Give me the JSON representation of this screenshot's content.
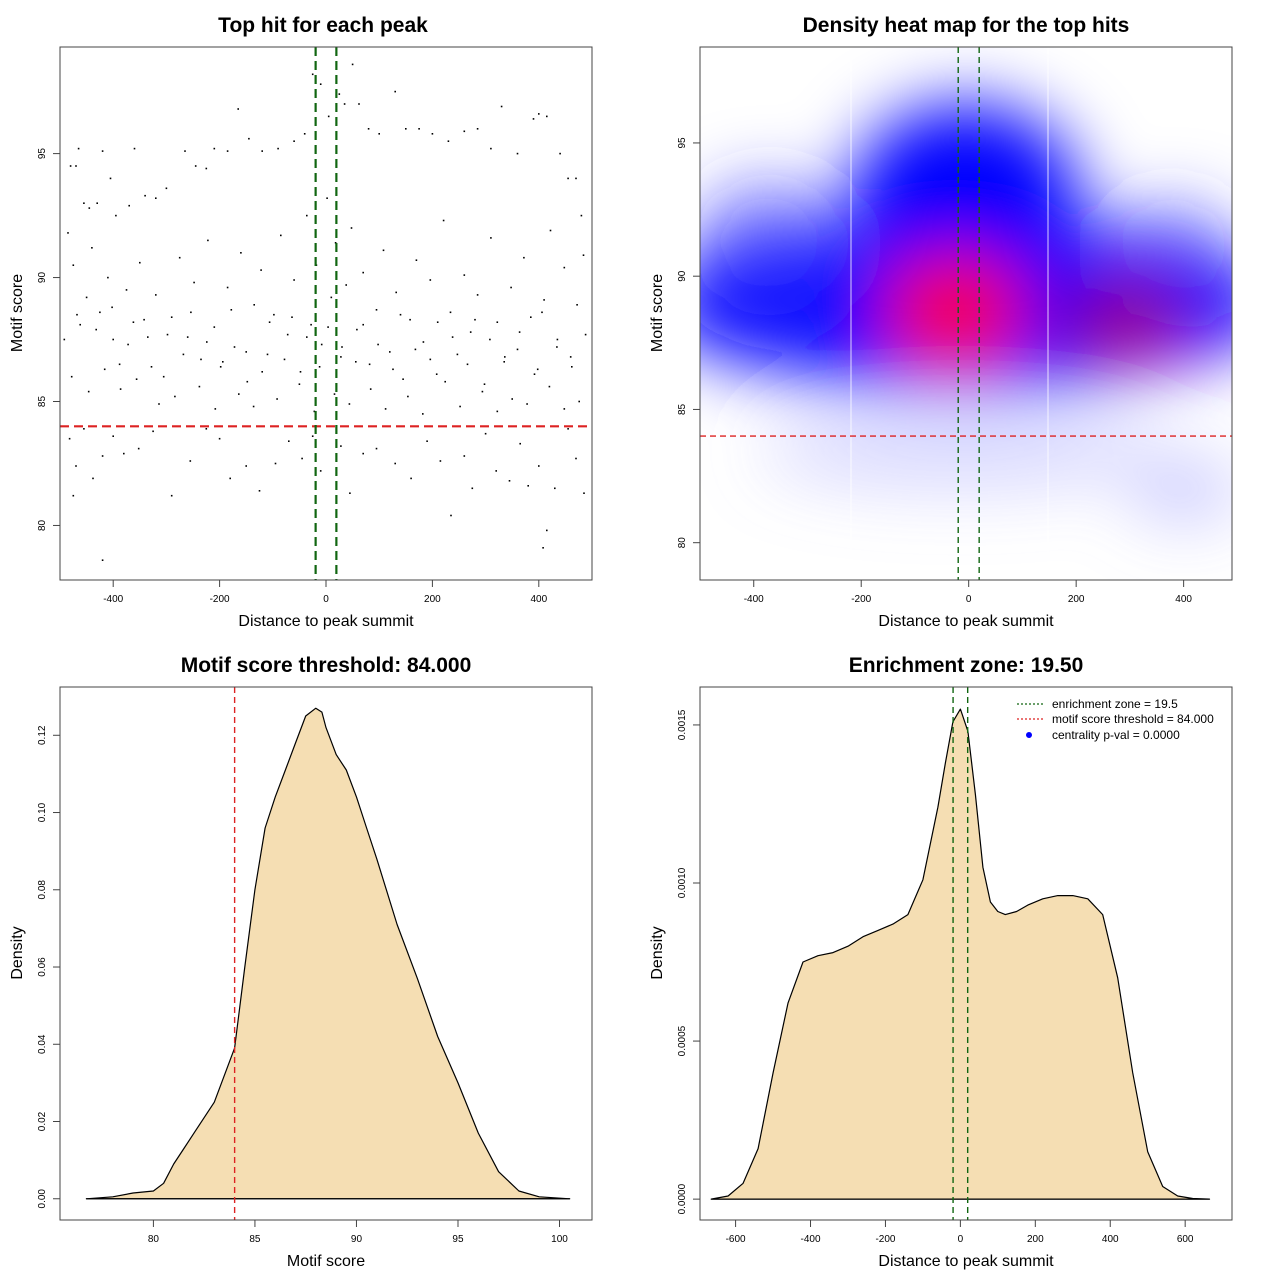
{
  "chart_data": [
    {
      "type": "scatter",
      "title": "Top hit for each peak",
      "xlabel": "Distance to peak summit",
      "ylabel": "Motif score",
      "xlim": [
        -500,
        500
      ],
      "ylim": [
        77.8,
        99.3
      ],
      "xticks": [
        -400,
        -200,
        0,
        200,
        400
      ],
      "yticks": [
        80,
        85,
        90,
        95
      ],
      "xtick_labels": [
        "-400",
        "-200",
        "0",
        "200",
        "400"
      ],
      "ytick_labels": [
        "80",
        "85",
        "90",
        "95"
      ],
      "grid": false,
      "point_color": "#000000",
      "hlines": [
        {
          "value": 84.0,
          "color": "#dd2222",
          "style": "dashed"
        }
      ],
      "vlines": [
        {
          "value": -19.5,
          "color": "#116611",
          "style": "dashed"
        },
        {
          "value": 19.5,
          "color": "#116611",
          "style": "dashed"
        }
      ],
      "points": [
        [
          -480,
          94.5
        ],
        [
          -470,
          94.5
        ],
        [
          -465,
          95.2
        ],
        [
          -455,
          93
        ],
        [
          -445,
          92.8
        ],
        [
          -430,
          93
        ],
        [
          -420,
          95.1
        ],
        [
          -405,
          94
        ],
        [
          -395,
          92.5
        ],
        [
          -370,
          92.9
        ],
        [
          -360,
          95.2
        ],
        [
          -340,
          93.3
        ],
        [
          -320,
          93.2
        ],
        [
          -300,
          93.6
        ],
        [
          -265,
          95.1
        ],
        [
          -245,
          94.5
        ],
        [
          -225,
          94.4
        ],
        [
          -210,
          95.2
        ],
        [
          -185,
          95.1
        ],
        [
          -165,
          96.8
        ],
        [
          -145,
          95.6
        ],
        [
          -120,
          95.1
        ],
        [
          -90,
          95.2
        ],
        [
          -60,
          95.5
        ],
        [
          -40,
          95.8
        ],
        [
          -25,
          98.2
        ],
        [
          -10,
          97.8
        ],
        [
          5,
          96.5
        ],
        [
          25,
          97.4
        ],
        [
          35,
          97
        ],
        [
          50,
          98.6
        ],
        [
          62,
          97
        ],
        [
          80,
          96
        ],
        [
          100,
          95.8
        ],
        [
          130,
          97.5
        ],
        [
          150,
          96
        ],
        [
          175,
          96
        ],
        [
          200,
          95.8
        ],
        [
          230,
          95.5
        ],
        [
          260,
          95.9
        ],
        [
          285,
          96
        ],
        [
          310,
          95.2
        ],
        [
          330,
          96.9
        ],
        [
          360,
          95
        ],
        [
          390,
          96.4
        ],
        [
          400,
          96.6
        ],
        [
          415,
          96.5
        ],
        [
          440,
          95
        ],
        [
          455,
          94
        ],
        [
          470,
          94
        ],
        [
          480,
          92.5
        ],
        [
          -485,
          91.8
        ],
        [
          -475,
          90.5
        ],
        [
          -468,
          88.5
        ],
        [
          -450,
          89.2
        ],
        [
          -440,
          91.2
        ],
        [
          -425,
          88.6
        ],
        [
          -410,
          90
        ],
        [
          -400,
          87.5
        ],
        [
          -388,
          86.5
        ],
        [
          -375,
          89.5
        ],
        [
          -362,
          88.2
        ],
        [
          -350,
          90.6
        ],
        [
          -335,
          87.6
        ],
        [
          -320,
          89.3
        ],
        [
          -305,
          86
        ],
        [
          -290,
          88.4
        ],
        [
          -275,
          90.8
        ],
        [
          -260,
          87.6
        ],
        [
          -248,
          89.8
        ],
        [
          -235,
          86.7
        ],
        [
          -222,
          91.5
        ],
        [
          -210,
          88
        ],
        [
          -198,
          86.4
        ],
        [
          -185,
          89.6
        ],
        [
          -172,
          87.2
        ],
        [
          -160,
          91
        ],
        [
          -148,
          85.8
        ],
        [
          -135,
          88.9
        ],
        [
          -122,
          90.3
        ],
        [
          -110,
          86.9
        ],
        [
          -98,
          88.5
        ],
        [
          -85,
          91.7
        ],
        [
          -72,
          87.7
        ],
        [
          -60,
          89.9
        ],
        [
          -48,
          86.2
        ],
        [
          -36,
          92.5
        ],
        [
          -28,
          88.1
        ],
        [
          -18,
          90.5
        ],
        [
          -8,
          87.3
        ],
        [
          2,
          93.2
        ],
        [
          10,
          89.2
        ],
        [
          18,
          91.4
        ],
        [
          28,
          86.8
        ],
        [
          38,
          89.7
        ],
        [
          48,
          92
        ],
        [
          58,
          87.9
        ],
        [
          70,
          90.2
        ],
        [
          82,
          86.5
        ],
        [
          95,
          88.7
        ],
        [
          108,
          91.1
        ],
        [
          120,
          87
        ],
        [
          132,
          89.4
        ],
        [
          145,
          85.9
        ],
        [
          158,
          88.3
        ],
        [
          170,
          90.7
        ],
        [
          183,
          87.4
        ],
        [
          196,
          89.9
        ],
        [
          208,
          86.1
        ],
        [
          221,
          92.3
        ],
        [
          234,
          88.6
        ],
        [
          247,
          86.9
        ],
        [
          260,
          90.1
        ],
        [
          272,
          87.8
        ],
        [
          285,
          89.3
        ],
        [
          298,
          85.7
        ],
        [
          310,
          91.6
        ],
        [
          322,
          88.2
        ],
        [
          335,
          86.6
        ],
        [
          348,
          89.6
        ],
        [
          360,
          87.1
        ],
        [
          372,
          90.8
        ],
        [
          385,
          88.4
        ],
        [
          398,
          86.3
        ],
        [
          410,
          89.1
        ],
        [
          422,
          91.9
        ],
        [
          435,
          87.5
        ],
        [
          448,
          90.4
        ],
        [
          460,
          86.8
        ],
        [
          472,
          88.9
        ],
        [
          484,
          90.9
        ],
        [
          -492,
          87.5
        ],
        [
          -478,
          86
        ],
        [
          -462,
          88.1
        ],
        [
          -446,
          85.4
        ],
        [
          -432,
          87.9
        ],
        [
          -416,
          86.3
        ],
        [
          -402,
          88.8
        ],
        [
          -386,
          85.5
        ],
        [
          -372,
          87.3
        ],
        [
          -356,
          85.9
        ],
        [
          -342,
          88.3
        ],
        [
          -328,
          86.4
        ],
        [
          -314,
          84.9
        ],
        [
          -298,
          87.7
        ],
        [
          -284,
          85.2
        ],
        [
          -268,
          86.9
        ],
        [
          -254,
          88.6
        ],
        [
          -238,
          85.6
        ],
        [
          -224,
          87.4
        ],
        [
          -208,
          84.7
        ],
        [
          -194,
          86.6
        ],
        [
          -178,
          88.7
        ],
        [
          -164,
          85.3
        ],
        [
          -150,
          87
        ],
        [
          -136,
          84.8
        ],
        [
          -120,
          86.2
        ],
        [
          -106,
          88.2
        ],
        [
          -92,
          85.1
        ],
        [
          -78,
          86.7
        ],
        [
          -64,
          88.4
        ],
        [
          -50,
          85.7
        ],
        [
          -36,
          87.6
        ],
        [
          -22,
          84.6
        ],
        [
          -12,
          86.4
        ],
        [
          4,
          88
        ],
        [
          16,
          85.3
        ],
        [
          30,
          87.2
        ],
        [
          44,
          84.9
        ],
        [
          56,
          86.6
        ],
        [
          70,
          88.1
        ],
        [
          84,
          85.5
        ],
        [
          98,
          87.3
        ],
        [
          112,
          84.7
        ],
        [
          126,
          86.3
        ],
        [
          140,
          88.5
        ],
        [
          154,
          85.2
        ],
        [
          168,
          87.1
        ],
        [
          182,
          84.5
        ],
        [
          196,
          86.7
        ],
        [
          210,
          88.2
        ],
        [
          224,
          85.8
        ],
        [
          238,
          87.6
        ],
        [
          252,
          84.8
        ],
        [
          266,
          86.5
        ],
        [
          280,
          88.3
        ],
        [
          294,
          85.4
        ],
        [
          308,
          87.5
        ],
        [
          322,
          84.6
        ],
        [
          336,
          86.8
        ],
        [
          350,
          85.1
        ],
        [
          364,
          87.8
        ],
        [
          378,
          84.9
        ],
        [
          392,
          86.1
        ],
        [
          406,
          88.6
        ],
        [
          420,
          85.6
        ],
        [
          434,
          87.2
        ],
        [
          448,
          84.7
        ],
        [
          462,
          86.4
        ],
        [
          476,
          85
        ],
        [
          488,
          87.7
        ],
        [
          -482,
          83.5
        ],
        [
          -470,
          82.4
        ],
        [
          -455,
          83.9
        ],
        [
          -438,
          81.9
        ],
        [
          -420,
          82.8
        ],
        [
          -400,
          83.6
        ],
        [
          -380,
          82.9
        ],
        [
          -352,
          83.1
        ],
        [
          -325,
          83.8
        ],
        [
          -290,
          81.2
        ],
        [
          -255,
          82.6
        ],
        [
          -225,
          83.9
        ],
        [
          -200,
          83.5
        ],
        [
          -180,
          81.9
        ],
        [
          -150,
          82.4
        ],
        [
          -125,
          81.4
        ],
        [
          -95,
          82.5
        ],
        [
          -70,
          83.4
        ],
        [
          -45,
          82.7
        ],
        [
          -25,
          83.6
        ],
        [
          -10,
          82.2
        ],
        [
          28,
          83.2
        ],
        [
          45,
          81.3
        ],
        [
          70,
          82.9
        ],
        [
          95,
          83.1
        ],
        [
          130,
          82.5
        ],
        [
          160,
          81.9
        ],
        [
          190,
          83.4
        ],
        [
          215,
          82.6
        ],
        [
          235,
          80.4
        ],
        [
          260,
          82.8
        ],
        [
          275,
          81.5
        ],
        [
          300,
          83.7
        ],
        [
          320,
          82.2
        ],
        [
          345,
          81.8
        ],
        [
          365,
          83.3
        ],
        [
          380,
          81.6
        ],
        [
          400,
          82.4
        ],
        [
          415,
          79.8
        ],
        [
          408,
          79.1
        ],
        [
          430,
          81.5
        ],
        [
          455,
          83.9
        ],
        [
          470,
          82.7
        ],
        [
          485,
          81.3
        ],
        [
          -420,
          78.6
        ],
        [
          -475,
          81.2
        ]
      ]
    },
    {
      "type": "heatmap",
      "title": "Density heat map for the top hits",
      "xlabel": "Distance to peak summit",
      "ylabel": "Motif score",
      "xlim": [
        -500,
        490
      ],
      "ylim": [
        78.6,
        98.6
      ],
      "xticks": [
        -400,
        -200,
        0,
        200,
        400
      ],
      "yticks": [
        80,
        85,
        90,
        95
      ],
      "xtick_labels": [
        "-400",
        "-200",
        "0",
        "200",
        "400"
      ],
      "ytick_labels": [
        "80",
        "85",
        "90",
        "95"
      ],
      "grid": false,
      "colors": {
        "low": "#ffffff",
        "mid": "#0000ff",
        "high": "#ff0000"
      },
      "hlines": [
        {
          "value": 84.0,
          "color": "#dd2222",
          "style": "dashed"
        }
      ],
      "vlines": [
        {
          "value": -19.5,
          "color": "#116611",
          "style": "dashed"
        },
        {
          "value": 19.5,
          "color": "#116611",
          "style": "dashed"
        }
      ]
    },
    {
      "type": "area",
      "title": "Motif score threshold: 84.000",
      "xlabel": "Motif score",
      "ylabel": "Density",
      "xlim": [
        75.4,
        101.6
      ],
      "ylim": [
        -0.0055,
        0.1325
      ],
      "xticks": [
        80,
        85,
        90,
        95,
        100
      ],
      "yticks": [
        0,
        0.02,
        0.04,
        0.06,
        0.08,
        0.1,
        0.12
      ],
      "xtick_labels": [
        "80",
        "85",
        "90",
        "95",
        "100"
      ],
      "ytick_labels": [
        "0.00",
        "0.02",
        "0.04",
        "0.06",
        "0.08",
        "0.10",
        "0.12"
      ],
      "grid": false,
      "fill": "#f5deb3",
      "vlines": [
        {
          "value": 84.0,
          "color": "#dd2222",
          "style": "dashed"
        }
      ],
      "x": [
        76.7,
        78,
        79,
        80,
        80.5,
        81,
        81.5,
        82,
        83,
        84,
        84.5,
        85,
        85.5,
        86,
        86.5,
        87,
        87.5,
        88,
        88.3,
        88.5,
        89,
        89.5,
        90,
        90.5,
        91,
        92,
        93,
        94,
        95,
        96,
        97,
        98,
        99,
        100.5
      ],
      "y": [
        0,
        0.0005,
        0.0015,
        0.002,
        0.004,
        0.009,
        0.013,
        0.017,
        0.025,
        0.039,
        0.06,
        0.08,
        0.096,
        0.104,
        0.111,
        0.118,
        0.125,
        0.127,
        0.126,
        0.122,
        0.115,
        0.111,
        0.104,
        0.096,
        0.088,
        0.071,
        0.057,
        0.042,
        0.03,
        0.017,
        0.007,
        0.002,
        0.0005,
        0
      ]
    },
    {
      "type": "area",
      "title": "Enrichment zone: 19.50",
      "xlabel": "Distance to peak summit",
      "ylabel": "Density",
      "xlim": [
        -695,
        725
      ],
      "ylim": [
        -6.6e-05,
        0.00162
      ],
      "xticks": [
        -600,
        -400,
        -200,
        0,
        200,
        400,
        600
      ],
      "yticks": [
        0,
        0.0005,
        0.001,
        0.0015
      ],
      "xtick_labels": [
        "-600",
        "-400",
        "-200",
        "0",
        "200",
        "400",
        "600"
      ],
      "ytick_labels": [
        "0.0000",
        "0.0005",
        "0.0010",
        "0.0015"
      ],
      "grid": false,
      "fill": "#f5deb3",
      "vlines": [
        {
          "value": -19.5,
          "color": "#116611",
          "style": "dashed"
        },
        {
          "value": 19.5,
          "color": "#116611",
          "style": "dashed"
        }
      ],
      "x": [
        -665,
        -620,
        -580,
        -540,
        -500,
        -460,
        -420,
        -380,
        -340,
        -300,
        -260,
        -220,
        -180,
        -140,
        -100,
        -60,
        -40,
        -20,
        0,
        20,
        40,
        60,
        80,
        100,
        120,
        150,
        180,
        220,
        260,
        300,
        340,
        380,
        420,
        460,
        500,
        540,
        580,
        620,
        665
      ],
      "y": [
        0,
        1e-05,
        5e-05,
        0.00016,
        0.0004,
        0.00062,
        0.00075,
        0.00077,
        0.00078,
        0.0008,
        0.00083,
        0.00085,
        0.00087,
        0.0009,
        0.00101,
        0.00124,
        0.00138,
        0.00151,
        0.00155,
        0.00148,
        0.00128,
        0.00105,
        0.00094,
        0.00091,
        0.0009,
        0.00091,
        0.00093,
        0.00095,
        0.00096,
        0.00096,
        0.00095,
        0.0009,
        0.0007,
        0.0004,
        0.00015,
        4e-05,
        1e-05,
        2e-06,
        0
      ],
      "legend": {
        "position": "top-right",
        "items": [
          {
            "label": "enrichment zone = 19.5",
            "color": "#116611",
            "marker": "dotted-line"
          },
          {
            "label": "motif score threshold = 84.000",
            "color": "#dd2222",
            "marker": "dotted-line"
          },
          {
            "label": "centrality p-val = 0.0000",
            "color": "#0000ff",
            "marker": "dot"
          }
        ]
      }
    }
  ]
}
